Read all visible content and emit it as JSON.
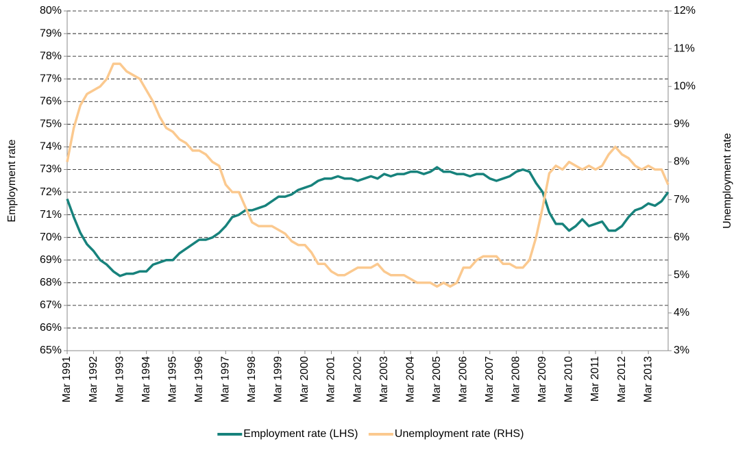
{
  "chart_data": {
    "type": "line",
    "categories": [
      "Mar 1991",
      null,
      null,
      null,
      "Mar 1992",
      null,
      null,
      null,
      "Mar 1993",
      null,
      null,
      null,
      "Mar 1994",
      null,
      null,
      null,
      "Mar 1995",
      null,
      null,
      null,
      "Mar 1996",
      null,
      null,
      null,
      "Mar 1997",
      null,
      null,
      null,
      "Mar 1998",
      null,
      null,
      null,
      "Mar 1999",
      null,
      null,
      null,
      "Mar 2000",
      null,
      null,
      null,
      "Mar 2001",
      null,
      null,
      null,
      "Mar 2002",
      null,
      null,
      null,
      "Mar 2003",
      null,
      null,
      null,
      "Mar 2004",
      null,
      null,
      null,
      "Mar 2005",
      null,
      null,
      null,
      "Mar 2006",
      null,
      null,
      null,
      "Mar 2007",
      null,
      null,
      null,
      "Mar 2008",
      null,
      null,
      null,
      "Mar 2009",
      null,
      null,
      null,
      "Mar 2010",
      null,
      null,
      null,
      "Mar 2011",
      null,
      null,
      null,
      "Mar 2012",
      null,
      null,
      null,
      "Mar 2013",
      null,
      null,
      null
    ],
    "y_label": "Employment rate",
    "y2_label": "Unemployment rate",
    "ylim": [
      65,
      80
    ],
    "yticks": [
      {
        "value": 65,
        "label": "65%"
      },
      {
        "value": 66,
        "label": "66%"
      },
      {
        "value": 67,
        "label": "67%"
      },
      {
        "value": 68,
        "label": "68%"
      },
      {
        "value": 69,
        "label": "69%"
      },
      {
        "value": 70,
        "label": "70%"
      },
      {
        "value": 71,
        "label": "71%"
      },
      {
        "value": 72,
        "label": "72%"
      },
      {
        "value": 73,
        "label": "73%"
      },
      {
        "value": 74,
        "label": "74%"
      },
      {
        "value": 75,
        "label": "75%"
      },
      {
        "value": 76,
        "label": "76%"
      },
      {
        "value": 77,
        "label": "77%"
      },
      {
        "value": 78,
        "label": "78%"
      },
      {
        "value": 79,
        "label": "79%"
      },
      {
        "value": 80,
        "label": "80%"
      }
    ],
    "y2lim": [
      3,
      12
    ],
    "y2ticks": [
      {
        "value": 3,
        "label": "3%"
      },
      {
        "value": 4,
        "label": "4%"
      },
      {
        "value": 5,
        "label": "5%"
      },
      {
        "value": 6,
        "label": "6%"
      },
      {
        "value": 7,
        "label": "7%"
      },
      {
        "value": 8,
        "label": "8%"
      },
      {
        "value": 9,
        "label": "9%"
      },
      {
        "value": 10,
        "label": "10%"
      },
      {
        "value": 11,
        "label": "11%"
      },
      {
        "value": 12,
        "label": "12%"
      }
    ],
    "grid": true,
    "legend": "bottom",
    "series": [
      {
        "name": "Employment rate (LHS)",
        "color": "#17827c",
        "axis": "y",
        "values": [
          71.7,
          70.9,
          70.2,
          69.7,
          69.4,
          69.0,
          68.8,
          68.5,
          68.3,
          68.4,
          68.4,
          68.5,
          68.5,
          68.8,
          68.9,
          69.0,
          69.0,
          69.3,
          69.5,
          69.7,
          69.9,
          69.9,
          70.0,
          70.2,
          70.5,
          70.9,
          71.0,
          71.2,
          71.2,
          71.3,
          71.4,
          71.6,
          71.8,
          71.8,
          71.9,
          72.1,
          72.2,
          72.3,
          72.5,
          72.6,
          72.6,
          72.7,
          72.6,
          72.6,
          72.5,
          72.6,
          72.7,
          72.6,
          72.8,
          72.7,
          72.8,
          72.8,
          72.9,
          72.9,
          72.8,
          72.9,
          73.1,
          72.9,
          72.9,
          72.8,
          72.8,
          72.7,
          72.8,
          72.8,
          72.6,
          72.5,
          72.6,
          72.7,
          72.9,
          73.0,
          72.9,
          72.4,
          72.0,
          71.1,
          70.6,
          70.6,
          70.3,
          70.5,
          70.8,
          70.5,
          70.6,
          70.7,
          70.3,
          70.3,
          70.5,
          70.9,
          71.2,
          71.3,
          71.5,
          71.4,
          71.6,
          72.0
        ]
      },
      {
        "name": "Unemployment rate (RHS)",
        "color": "#fbc98f",
        "axis": "y2",
        "values": [
          8.0,
          8.9,
          9.5,
          9.8,
          9.9,
          10.0,
          10.2,
          10.6,
          10.6,
          10.4,
          10.3,
          10.2,
          9.9,
          9.6,
          9.2,
          8.9,
          8.8,
          8.6,
          8.5,
          8.3,
          8.3,
          8.2,
          8.0,
          7.9,
          7.4,
          7.2,
          7.2,
          6.8,
          6.4,
          6.3,
          6.3,
          6.3,
          6.2,
          6.1,
          5.9,
          5.8,
          5.8,
          5.6,
          5.3,
          5.3,
          5.1,
          5.0,
          5.0,
          5.1,
          5.2,
          5.2,
          5.2,
          5.3,
          5.1,
          5.0,
          5.0,
          5.0,
          4.9,
          4.8,
          4.8,
          4.8,
          4.7,
          4.8,
          4.7,
          4.8,
          5.2,
          5.2,
          5.4,
          5.5,
          5.5,
          5.5,
          5.3,
          5.3,
          5.2,
          5.2,
          5.4,
          6.0,
          6.8,
          7.7,
          7.9,
          7.8,
          8.0,
          7.9,
          7.8,
          7.9,
          7.8,
          7.9,
          8.2,
          8.4,
          8.2,
          8.1,
          7.9,
          7.8,
          7.9,
          7.8,
          7.8,
          7.4
        ]
      }
    ]
  }
}
